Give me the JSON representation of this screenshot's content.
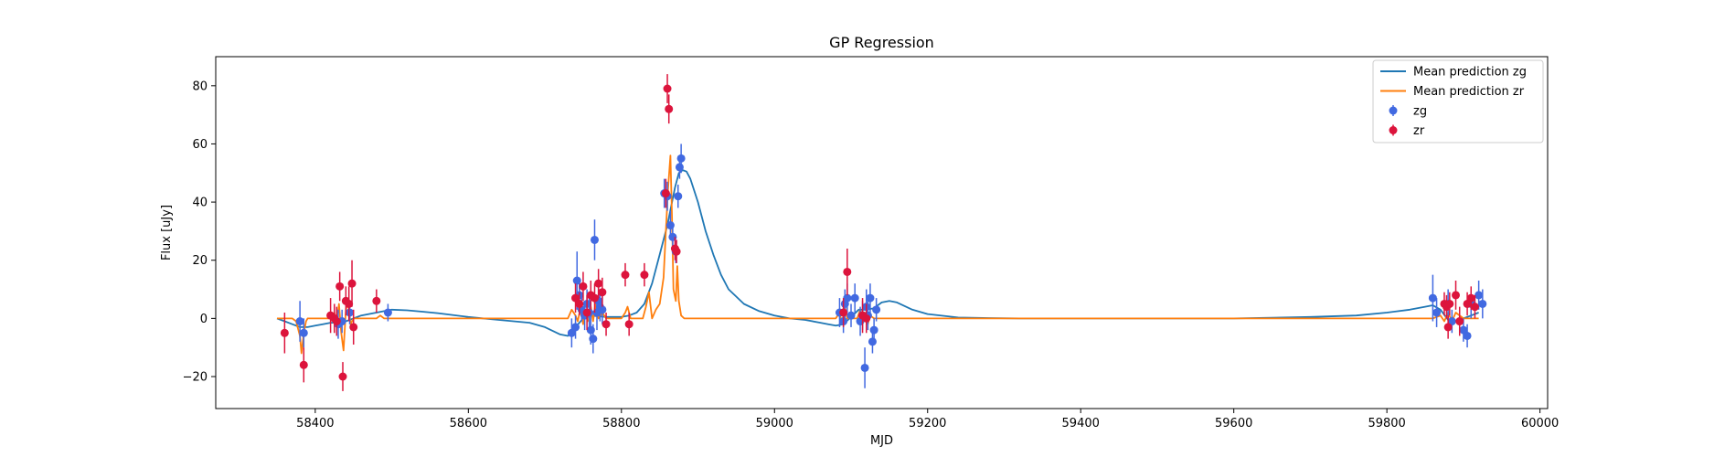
{
  "chart_data": {
    "type": "line",
    "title": "GP Regression",
    "xlabel": "MJD",
    "ylabel": "Flux [uJy]",
    "xlim": [
      58270,
      60010
    ],
    "ylim": [
      -31,
      90
    ],
    "xticks": [
      58400,
      58600,
      58800,
      59000,
      59200,
      59400,
      59600,
      59800,
      60000
    ],
    "yticks": [
      -20,
      0,
      20,
      40,
      60,
      80
    ],
    "grid": false,
    "legend_position": "top-right",
    "colors": {
      "zg_line": "#1f77b4",
      "zr_line": "#ff7f0e",
      "zg_points": "#4169e1",
      "zr_points": "#dc143c"
    },
    "lines": [
      {
        "name": "Mean prediction zg",
        "x": [
          58350,
          58360,
          58370,
          58380,
          58390,
          58400,
          58410,
          58420,
          58430,
          58440,
          58450,
          58460,
          58470,
          58480,
          58490,
          58500,
          58520,
          58540,
          58560,
          58600,
          58640,
          58680,
          58700,
          58720,
          58730,
          58740,
          58750,
          58760,
          58780,
          58800,
          58810,
          58820,
          58830,
          58840,
          58850,
          58860,
          58870,
          58875,
          58880,
          58885,
          58890,
          58900,
          58910,
          58920,
          58930,
          58940,
          58960,
          58980,
          59000,
          59020,
          59040,
          59060,
          59070,
          59080,
          59090,
          59100,
          59110,
          59120,
          59130,
          59140,
          59150,
          59160,
          59180,
          59200,
          59240,
          59280,
          59320,
          59400,
          59500,
          59600,
          59700,
          59760,
          59800,
          59830,
          59850,
          59860,
          59870,
          59880,
          59890,
          59900,
          59910,
          59920
        ],
        "y": [
          0,
          -1,
          -2,
          -3,
          -3,
          -2.5,
          -2,
          -1.5,
          -1.5,
          -1,
          0,
          1,
          1.5,
          2,
          2.5,
          3,
          2.8,
          2.3,
          1.8,
          0.5,
          -0.5,
          -1.5,
          -3,
          -5.5,
          -6,
          -3,
          0,
          1,
          0.5,
          0.5,
          1,
          2,
          5,
          12,
          22,
          32,
          45,
          50,
          51,
          50.5,
          48,
          40,
          30,
          22,
          15,
          10,
          5,
          2.5,
          1,
          0,
          -0.5,
          -1.5,
          -2,
          -2.5,
          -2,
          0.5,
          3,
          3,
          3.5,
          5.5,
          6,
          5.5,
          3,
          1.5,
          0.3,
          0.1,
          0,
          0,
          0,
          0,
          0.5,
          1,
          2,
          3,
          4,
          4.5,
          3,
          -0.5,
          -1,
          0,
          1,
          2
        ]
      },
      {
        "name": "Mean prediction zr",
        "x": [
          58350,
          58360,
          58370,
          58375,
          58380,
          58382,
          58385,
          58388,
          58390,
          58400,
          58410,
          58420,
          58425,
          58428,
          58431,
          58434,
          58437,
          58440,
          58443,
          58446,
          58450,
          58460,
          58470,
          58480,
          58485,
          58490,
          58500,
          58600,
          58700,
          58730,
          58735,
          58740,
          58743,
          58746,
          58750,
          58753,
          58756,
          58760,
          58763,
          58766,
          58770,
          58775,
          58780,
          58790,
          58800,
          58805,
          58808,
          58812,
          58820,
          58828,
          58832,
          58836,
          58840,
          58845,
          58850,
          58855,
          58858,
          58861,
          58864,
          58866,
          58868,
          58871,
          58873,
          58875,
          58878,
          58882,
          58890,
          58900,
          59000,
          59080,
          59085,
          59088,
          59092,
          59095,
          59100,
          59108,
          59112,
          59115,
          59118,
          59122,
          59125,
          59130,
          59200,
          59400,
          59600,
          59800,
          59860,
          59870,
          59875,
          59880,
          59885,
          59890,
          59900,
          59910,
          59920
        ],
        "y": [
          0,
          0,
          0,
          -1,
          -6,
          -12,
          -5,
          -1,
          0,
          0,
          0,
          0,
          2,
          -2,
          5,
          -5,
          -11,
          3,
          6,
          -2,
          0,
          0,
          0,
          0,
          1,
          0,
          0,
          0,
          0,
          0,
          3,
          1,
          -1,
          3,
          -2,
          3,
          -1,
          4,
          -1,
          5,
          0,
          2,
          0,
          0,
          0,
          2,
          4,
          0,
          0,
          0,
          4,
          9,
          0,
          3,
          5,
          14,
          30,
          45,
          56,
          35,
          10,
          6,
          18,
          6,
          1,
          0,
          0,
          0,
          0,
          0,
          2,
          -2,
          4,
          0,
          0,
          0,
          3,
          -1,
          2,
          -2,
          1,
          0,
          0,
          0,
          0,
          0,
          0,
          1,
          -1,
          2,
          -1,
          2,
          0,
          0,
          0
        ]
      }
    ],
    "points": [
      {
        "name": "zg",
        "x": [
          58380,
          58385,
          58430,
          58435,
          58445,
          58495,
          58735,
          58740,
          58742,
          58745,
          58748,
          58752,
          58755,
          58758,
          58760,
          58763,
          58765,
          58768,
          58770,
          58772,
          58775,
          58856,
          58860,
          58864,
          58867,
          58871,
          58874,
          58876,
          58878,
          59085,
          59090,
          59092,
          59095,
          59100,
          59105,
          59112,
          59115,
          59118,
          59120,
          59122,
          59125,
          59128,
          59130,
          59133,
          59860,
          59865,
          59880,
          59885,
          59900,
          59905,
          59910,
          59920,
          59925
        ],
        "y": [
          -1,
          -5,
          -2,
          -1,
          2,
          2,
          -5,
          -3,
          13,
          8,
          3,
          1,
          5,
          2,
          -4,
          -7,
          27,
          2,
          6,
          4,
          3,
          43,
          42,
          32,
          28,
          23,
          42,
          52,
          55,
          2,
          -1,
          5,
          7,
          1,
          7,
          -1,
          1,
          -17,
          4,
          1,
          7,
          -8,
          -4,
          3,
          7,
          2,
          5,
          -1,
          -4,
          -6,
          5,
          8,
          5
        ],
        "yerr": [
          7,
          5,
          5,
          4,
          4,
          3,
          5,
          4,
          10,
          6,
          4,
          5,
          5,
          5,
          5,
          5,
          7,
          6,
          5,
          5,
          5,
          5,
          5,
          5,
          5,
          4,
          4,
          4,
          5,
          5,
          4,
          5,
          5,
          4,
          5,
          5,
          5,
          7,
          6,
          5,
          5,
          4,
          4,
          4,
          8,
          5,
          5,
          4,
          4,
          4,
          5,
          5,
          5
        ]
      },
      {
        "name": "zr",
        "x": [
          58360,
          58385,
          58420,
          58425,
          58428,
          58432,
          58436,
          58440,
          58444,
          58448,
          58450,
          58480,
          58740,
          58745,
          58750,
          58755,
          58760,
          58765,
          58770,
          58775,
          58780,
          58805,
          58810,
          58830,
          58858,
          58860,
          58862,
          58870,
          58872,
          59090,
          59095,
          59115,
          59120,
          59875,
          59878,
          59880,
          59882,
          59890,
          59895,
          59905,
          59910,
          59915
        ],
        "y": [
          -5,
          -16,
          1,
          0,
          -1,
          11,
          -20,
          6,
          5,
          12,
          -3,
          6,
          7,
          5,
          11,
          2,
          8,
          7,
          12,
          9,
          -2,
          15,
          -2,
          15,
          43,
          79,
          72,
          24,
          23,
          2,
          16,
          1,
          0,
          5,
          4,
          -3,
          5,
          8,
          -1,
          5,
          7,
          4
        ],
        "yerr": [
          7,
          6,
          6,
          5,
          5,
          5,
          5,
          5,
          6,
          8,
          6,
          4,
          5,
          4,
          5,
          6,
          5,
          5,
          5,
          5,
          4,
          4,
          4,
          4,
          5,
          5,
          5,
          4,
          4,
          5,
          8,
          6,
          5,
          4,
          4,
          4,
          4,
          5,
          5,
          4,
          4,
          4
        ]
      }
    ]
  }
}
